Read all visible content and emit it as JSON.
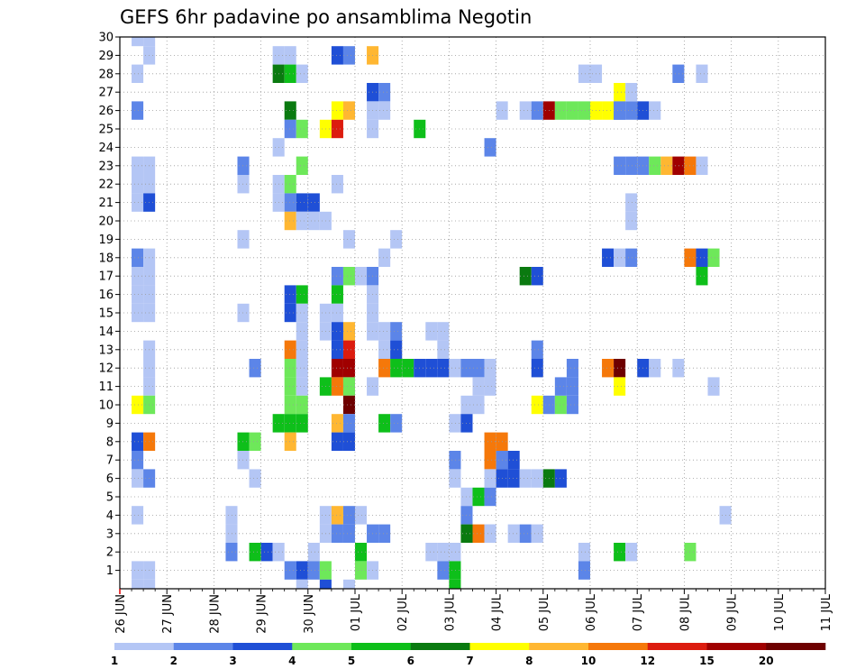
{
  "chart_data": {
    "type": "heatmap",
    "title": "GEFS 6hr padavine po ansamblima Negotin",
    "xlabel": "",
    "ylabel": "",
    "x_tick_labels": [
      "26 JUN",
      "27 JUN",
      "28 JUN",
      "29 JUN",
      "30 JUN",
      "01 JUL",
      "02 JUL",
      "03 JUL",
      "04 JUL",
      "05 JUL",
      "06 JUL",
      "07 JUL",
      "08 JUL",
      "09 JUL",
      "10 JUL",
      "11 JUL"
    ],
    "y_tick_labels": [
      "1",
      "2",
      "3",
      "4",
      "5",
      "6",
      "7",
      "8",
      "9",
      "10",
      "11",
      "12",
      "13",
      "14",
      "15",
      "16",
      "17",
      "18",
      "19",
      "20",
      "21",
      "22",
      "23",
      "24",
      "25",
      "26",
      "27",
      "28",
      "29",
      "30"
    ],
    "x_range_days": [
      0,
      15
    ],
    "y_range": [
      0,
      30
    ],
    "time_step_hours": 6,
    "grid": true,
    "legend_position": "bottom",
    "colorbar": {
      "labels": [
        "1",
        "2",
        "3",
        "4",
        "5",
        "6",
        "7",
        "8",
        "10",
        "12",
        "15",
        "20"
      ],
      "colors": [
        "#b4c6f5",
        "#5c85e8",
        "#1f4fd6",
        "#6ee85a",
        "#0ebf1a",
        "#0a7a10",
        "#ffff00",
        "#ffb732",
        "#f5780a",
        "#dc1c0f",
        "#a00000",
        "#6e0000"
      ]
    },
    "cells_format": "[member, time_step_index (6h steps from 26 JUN 00Z), color_class_index 0-11]",
    "cells": [
      [
        30,
        1,
        0
      ],
      [
        30,
        2,
        0
      ],
      [
        29,
        2,
        0
      ],
      [
        28,
        1,
        0
      ],
      [
        26,
        1,
        1
      ],
      [
        23,
        1,
        0
      ],
      [
        23,
        2,
        0
      ],
      [
        22,
        1,
        0
      ],
      [
        22,
        2,
        0
      ],
      [
        21,
        1,
        0
      ],
      [
        21,
        2,
        2
      ],
      [
        18,
        1,
        1
      ],
      [
        18,
        2,
        0
      ],
      [
        17,
        1,
        0
      ],
      [
        17,
        2,
        0
      ],
      [
        16,
        1,
        0
      ],
      [
        16,
        2,
        0
      ],
      [
        15,
        1,
        0
      ],
      [
        15,
        2,
        0
      ],
      [
        13,
        2,
        0
      ],
      [
        12,
        2,
        0
      ],
      [
        11,
        2,
        0
      ],
      [
        10,
        1,
        6
      ],
      [
        10,
        2,
        3
      ],
      [
        8,
        1,
        2
      ],
      [
        8,
        2,
        8
      ],
      [
        7,
        1,
        1
      ],
      [
        6,
        1,
        0
      ],
      [
        6,
        2,
        1
      ],
      [
        4,
        1,
        0
      ],
      [
        1,
        1,
        0
      ],
      [
        1,
        2,
        0
      ],
      [
        0,
        1,
        0
      ],
      [
        0,
        2,
        0
      ],
      [
        4,
        9,
        0
      ],
      [
        3,
        9,
        0
      ],
      [
        2,
        9,
        1
      ],
      [
        23,
        10,
        1
      ],
      [
        22,
        10,
        0
      ],
      [
        19,
        10,
        0
      ],
      [
        15,
        10,
        0
      ],
      [
        12,
        11,
        1
      ],
      [
        8,
        10,
        4
      ],
      [
        8,
        11,
        3
      ],
      [
        7,
        10,
        0
      ],
      [
        6,
        11,
        0
      ],
      [
        2,
        11,
        4
      ],
      [
        2,
        12,
        2
      ],
      [
        29,
        13,
        0
      ],
      [
        29,
        14,
        0
      ],
      [
        28,
        13,
        5
      ],
      [
        28,
        14,
        4
      ],
      [
        28,
        15,
        0
      ],
      [
        26,
        14,
        5
      ],
      [
        25,
        14,
        1
      ],
      [
        25,
        15,
        3
      ],
      [
        24,
        13,
        0
      ],
      [
        23,
        15,
        3
      ],
      [
        22,
        13,
        0
      ],
      [
        22,
        14,
        3
      ],
      [
        21,
        13,
        0
      ],
      [
        21,
        14,
        1
      ],
      [
        21,
        15,
        2
      ],
      [
        21,
        16,
        2
      ],
      [
        20,
        14,
        7
      ],
      [
        20,
        15,
        0
      ],
      [
        20,
        16,
        0
      ],
      [
        16,
        14,
        2
      ],
      [
        16,
        15,
        4
      ],
      [
        15,
        14,
        2
      ],
      [
        15,
        15,
        0
      ],
      [
        14,
        15,
        0
      ],
      [
        13,
        14,
        8
      ],
      [
        13,
        15,
        0
      ],
      [
        12,
        14,
        3
      ],
      [
        12,
        15,
        0
      ],
      [
        11,
        14,
        3
      ],
      [
        11,
        15,
        0
      ],
      [
        10,
        14,
        3
      ],
      [
        10,
        15,
        3
      ],
      [
        9,
        13,
        4
      ],
      [
        9,
        14,
        4
      ],
      [
        9,
        15,
        4
      ],
      [
        8,
        14,
        7
      ],
      [
        2,
        13,
        0
      ],
      [
        1,
        14,
        1
      ],
      [
        1,
        15,
        2
      ],
      [
        0,
        15,
        0
      ],
      [
        29,
        18,
        2
      ],
      [
        29,
        19,
        1
      ],
      [
        29,
        21,
        7
      ],
      [
        27,
        21,
        2
      ],
      [
        27,
        22,
        1
      ],
      [
        26,
        18,
        6
      ],
      [
        26,
        19,
        7
      ],
      [
        25,
        17,
        6
      ],
      [
        25,
        18,
        9
      ],
      [
        22,
        18,
        0
      ],
      [
        20,
        17,
        0
      ],
      [
        19,
        19,
        0
      ],
      [
        17,
        18,
        1
      ],
      [
        17,
        19,
        3
      ],
      [
        17,
        20,
        0
      ],
      [
        16,
        18,
        4
      ],
      [
        15,
        17,
        0
      ],
      [
        15,
        18,
        0
      ],
      [
        14,
        19,
        7
      ],
      [
        14,
        18,
        2
      ],
      [
        14,
        17,
        0
      ],
      [
        13,
        18,
        2
      ],
      [
        13,
        19,
        9
      ],
      [
        12,
        18,
        10
      ],
      [
        12,
        19,
        10
      ],
      [
        11,
        17,
        4
      ],
      [
        11,
        18,
        8
      ],
      [
        11,
        19,
        3
      ],
      [
        10,
        19,
        11
      ],
      [
        9,
        18,
        7
      ],
      [
        9,
        19,
        1
      ],
      [
        8,
        18,
        2
      ],
      [
        8,
        19,
        2
      ],
      [
        4,
        17,
        0
      ],
      [
        4,
        18,
        7
      ],
      [
        4,
        19,
        1
      ],
      [
        4,
        20,
        0
      ],
      [
        3,
        17,
        0
      ],
      [
        3,
        18,
        1
      ],
      [
        3,
        19,
        1
      ],
      [
        2,
        16,
        0
      ],
      [
        1,
        16,
        1
      ],
      [
        1,
        17,
        3
      ],
      [
        0,
        17,
        2
      ],
      [
        0,
        19,
        0
      ],
      [
        -1,
        19,
        0
      ],
      [
        26,
        21,
        0
      ],
      [
        25,
        21,
        0
      ],
      [
        26,
        22,
        0
      ],
      [
        17,
        21,
        1
      ],
      [
        16,
        21,
        0
      ],
      [
        15,
        21,
        0
      ],
      [
        14,
        21,
        0
      ],
      [
        14,
        22,
        0
      ],
      [
        13,
        22,
        0
      ],
      [
        13,
        23,
        0
      ],
      [
        12,
        22,
        8
      ],
      [
        12,
        23,
        4
      ],
      [
        12,
        24,
        4
      ],
      [
        12,
        25,
        2
      ],
      [
        12,
        26,
        2
      ],
      [
        12,
        27,
        2
      ],
      [
        13,
        23,
        2
      ],
      [
        14,
        23,
        1
      ],
      [
        11,
        21,
        0
      ],
      [
        9,
        22,
        4
      ],
      [
        9,
        23,
        1
      ],
      [
        3,
        21,
        1
      ],
      [
        3,
        22,
        1
      ],
      [
        2,
        20,
        4
      ],
      [
        1,
        20,
        3
      ],
      [
        1,
        21,
        0
      ],
      [
        25,
        25,
        4
      ],
      [
        19,
        23,
        0
      ],
      [
        18,
        22,
        0
      ],
      [
        14,
        26,
        0
      ],
      [
        14,
        27,
        0
      ],
      [
        13,
        27,
        0
      ],
      [
        12,
        28,
        0
      ],
      [
        12,
        29,
        1
      ],
      [
        12,
        30,
        1
      ],
      [
        12,
        31,
        0
      ],
      [
        10,
        29,
        0
      ],
      [
        10,
        30,
        0
      ],
      [
        9,
        28,
        0
      ],
      [
        9,
        29,
        2
      ],
      [
        7,
        28,
        1
      ],
      [
        6,
        28,
        0
      ],
      [
        5,
        29,
        0
      ],
      [
        4,
        29,
        1
      ],
      [
        3,
        29,
        5
      ],
      [
        3,
        30,
        8
      ],
      [
        3,
        31,
        0
      ],
      [
        2,
        26,
        0
      ],
      [
        2,
        27,
        0
      ],
      [
        2,
        28,
        0
      ],
      [
        1,
        27,
        1
      ],
      [
        1,
        28,
        4
      ],
      [
        0,
        28,
        4
      ],
      [
        26,
        32,
        0
      ],
      [
        24,
        31,
        1
      ],
      [
        26,
        34,
        0
      ],
      [
        26,
        35,
        1
      ],
      [
        26,
        36,
        10
      ],
      [
        26,
        37,
        3
      ],
      [
        26,
        38,
        3
      ],
      [
        26,
        39,
        3
      ],
      [
        26,
        40,
        6
      ],
      [
        26,
        41,
        6
      ],
      [
        26,
        42,
        1
      ],
      [
        26,
        43,
        1
      ],
      [
        26,
        44,
        2
      ],
      [
        26,
        45,
        0
      ],
      [
        12,
        31,
        0
      ],
      [
        11,
        30,
        0
      ],
      [
        11,
        31,
        0
      ],
      [
        8,
        31,
        8
      ],
      [
        8,
        32,
        8
      ],
      [
        7,
        31,
        8
      ],
      [
        7,
        32,
        1
      ],
      [
        7,
        33,
        2
      ],
      [
        6,
        31,
        0
      ],
      [
        6,
        32,
        2
      ],
      [
        6,
        33,
        2
      ],
      [
        6,
        34,
        0
      ],
      [
        6,
        35,
        0
      ],
      [
        5,
        30,
        4
      ],
      [
        5,
        31,
        1
      ],
      [
        3,
        31,
        0
      ],
      [
        3,
        33,
        0
      ],
      [
        3,
        34,
        1
      ],
      [
        3,
        35,
        0
      ],
      [
        17,
        34,
        5
      ],
      [
        17,
        35,
        2
      ],
      [
        13,
        35,
        1
      ],
      [
        12,
        35,
        2
      ],
      [
        10,
        35,
        6
      ],
      [
        10,
        36,
        1
      ],
      [
        10,
        37,
        3
      ],
      [
        11,
        37,
        1
      ],
      [
        12,
        38,
        1
      ],
      [
        11,
        38,
        1
      ],
      [
        10,
        38,
        1
      ],
      [
        6,
        36,
        5
      ],
      [
        6,
        37,
        2
      ],
      [
        2,
        39,
        0
      ],
      [
        1,
        39,
        1
      ],
      [
        28,
        39,
        0
      ],
      [
        28,
        40,
        0
      ],
      [
        27,
        42,
        6
      ],
      [
        27,
        43,
        0
      ],
      [
        26,
        42,
        1
      ],
      [
        18,
        41,
        2
      ],
      [
        18,
        42,
        0
      ],
      [
        18,
        43,
        1
      ],
      [
        21,
        43,
        0
      ],
      [
        20,
        43,
        0
      ],
      [
        23,
        42,
        1
      ],
      [
        23,
        43,
        1
      ],
      [
        23,
        44,
        1
      ],
      [
        23,
        45,
        3
      ],
      [
        23,
        46,
        7
      ],
      [
        23,
        47,
        10
      ],
      [
        23,
        48,
        8
      ],
      [
        23,
        49,
        0
      ],
      [
        17,
        49,
        4
      ],
      [
        18,
        48,
        8
      ],
      [
        18,
        49,
        2
      ],
      [
        18,
        50,
        3
      ],
      [
        12,
        41,
        8
      ],
      [
        12,
        42,
        11
      ],
      [
        12,
        44,
        2
      ],
      [
        12,
        45,
        0
      ],
      [
        12,
        47,
        0
      ],
      [
        11,
        42,
        6
      ],
      [
        11,
        50,
        0
      ],
      [
        2,
        42,
        4
      ],
      [
        2,
        43,
        0
      ],
      [
        2,
        48,
        3
      ],
      [
        28,
        47,
        1
      ],
      [
        28,
        49,
        0
      ],
      [
        4,
        51,
        0
      ]
    ]
  }
}
